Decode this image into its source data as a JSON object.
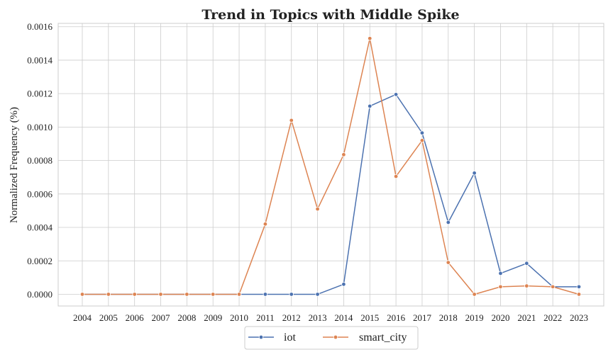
{
  "chart_data": {
    "type": "line",
    "title": "Trend in Topics with Middle Spike",
    "xlabel": "",
    "ylabel": "Normalized Frequency (%)",
    "x": [
      "2004",
      "2005",
      "2006",
      "2007",
      "2008",
      "2009",
      "2010",
      "2011",
      "2012",
      "2013",
      "2014",
      "2015",
      "2016",
      "2017",
      "2018",
      "2019",
      "2020",
      "2021",
      "2022",
      "2023"
    ],
    "ylim": [
      -7e-05,
      0.00162
    ],
    "yticks": [
      "0.0000",
      "0.0002",
      "0.0004",
      "0.0006",
      "0.0008",
      "0.0010",
      "0.0012",
      "0.0014",
      "0.0016"
    ],
    "grid": true,
    "legend": "bottom-center",
    "series": [
      {
        "name": "iot",
        "color": "#4c72b0",
        "values": [
          0,
          0,
          0,
          0,
          0,
          0,
          0,
          0,
          0,
          0,
          6e-05,
          0.001125,
          0.001195,
          0.000965,
          0.00043,
          0.000725,
          0.000125,
          0.000185,
          4.5e-05,
          4.5e-05
        ]
      },
      {
        "name": "smart_city",
        "color": "#dd8452",
        "values": [
          0,
          0,
          0,
          0,
          0,
          0,
          0,
          0.00042,
          0.00104,
          0.00051,
          0.000835,
          0.00153,
          0.000705,
          0.00092,
          0.00019,
          0,
          4.5e-05,
          5e-05,
          4.5e-05,
          0
        ]
      }
    ]
  }
}
